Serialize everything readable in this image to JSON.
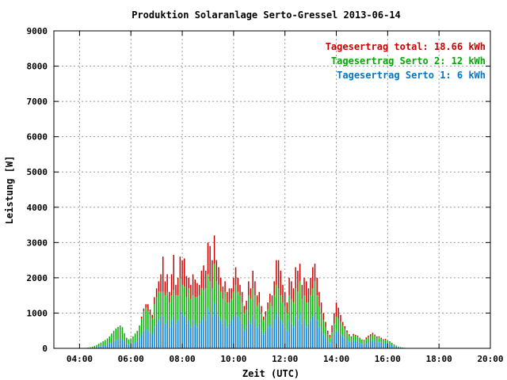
{
  "chart_data": {
    "type": "bar",
    "title": "Produktion Solaranlage Serto-Gressel 2013-06-14",
    "xlabel": "Zeit (UTC)",
    "ylabel": "Leistung [W]",
    "xlim": [
      3.0,
      20.0
    ],
    "ylim": [
      0,
      9000
    ],
    "x_ticks": [
      {
        "value": 4,
        "label": "04:00"
      },
      {
        "value": 6,
        "label": "06:00"
      },
      {
        "value": 8,
        "label": "08:00"
      },
      {
        "value": 10,
        "label": "10:00"
      },
      {
        "value": 12,
        "label": "12:00"
      },
      {
        "value": 14,
        "label": "14:00"
      },
      {
        "value": 16,
        "label": "16:00"
      },
      {
        "value": 18,
        "label": "18:00"
      },
      {
        "value": 20,
        "label": "20:00"
      }
    ],
    "y_ticks": [
      0,
      1000,
      2000,
      3000,
      4000,
      5000,
      6000,
      7000,
      8000,
      9000
    ],
    "grid": true,
    "legend_position": "top-right",
    "legend": [
      {
        "label": "Tagesertrag total: 18.66 kWh",
        "color": "#cc0000"
      },
      {
        "label": "Tagesertrag Serto 2: 12 kWh",
        "color": "#00aa00"
      },
      {
        "label": "Tagesertrag Serto 1: 6 kWh",
        "color": "#0077cc"
      }
    ],
    "stacked": true,
    "step_hours": 0.08333,
    "x_start": 4.0,
    "series": [
      {
        "name": "Tagesertrag Serto 1: 6 kWh",
        "color": "#0077cc",
        "values": [
          5,
          4,
          3,
          5,
          8,
          12,
          18,
          25,
          35,
          50,
          65,
          80,
          95,
          110,
          140,
          170,
          200,
          230,
          250,
          270,
          250,
          180,
          120,
          100,
          110,
          140,
          170,
          200,
          300,
          400,
          500,
          550,
          500,
          450,
          400,
          600,
          700,
          800,
          900,
          900,
          700,
          800,
          600,
          800,
          900,
          700,
          800,
          1100,
          1000,
          900,
          700,
          800,
          600,
          800,
          700,
          600,
          700,
          800,
          900,
          800,
          1100,
          1000,
          900,
          1300,
          1000,
          900,
          800,
          700,
          800,
          600,
          700,
          800,
          900,
          1000,
          900,
          800,
          700,
          500,
          600,
          800,
          700,
          900,
          800,
          600,
          700,
          500,
          400,
          500,
          600,
          700,
          600,
          800,
          1000,
          900,
          800,
          700,
          600,
          500,
          800,
          700,
          600,
          900,
          800,
          1000,
          700,
          800,
          600,
          700,
          800,
          900,
          1000,
          800,
          600,
          500,
          400,
          300,
          200,
          150,
          250,
          400,
          500,
          450,
          400,
          350,
          300,
          250,
          200,
          180,
          220,
          200,
          190,
          160,
          130,
          120,
          150,
          170,
          190,
          230,
          200,
          170,
          180,
          160,
          140,
          150,
          130,
          110,
          90,
          70,
          50,
          30,
          20,
          15,
          10,
          5
        ]
      },
      {
        "name": "Tagesertrag Serto 2: 12 kWh",
        "color": "#00aa00",
        "values": [
          5,
          4,
          3,
          8,
          12,
          20,
          30,
          45,
          60,
          80,
          100,
          120,
          140,
          170,
          200,
          250,
          300,
          330,
          360,
          380,
          350,
          250,
          180,
          150,
          170,
          200,
          250,
          300,
          350,
          450,
          550,
          600,
          550,
          500,
          450,
          650,
          750,
          800,
          700,
          700,
          800,
          800,
          700,
          700,
          750,
          800,
          700,
          900,
          800,
          850,
          750,
          900,
          800,
          700,
          750,
          850,
          800,
          900,
          750,
          900,
          1000,
          900,
          800,
          1100,
          900,
          900,
          800,
          700,
          800,
          700,
          600,
          600,
          700,
          800,
          700,
          700,
          600,
          500,
          500,
          700,
          700,
          800,
          700,
          600,
          600,
          500,
          400,
          400,
          500,
          600,
          600,
          700,
          800,
          800,
          700,
          600,
          600,
          500,
          700,
          700,
          700,
          800,
          800,
          900,
          700,
          700,
          700,
          600,
          700,
          800,
          900,
          700,
          600,
          500,
          400,
          300,
          200,
          150,
          200,
          300,
          400,
          400,
          350,
          300,
          250,
          200,
          150,
          120,
          150,
          150,
          140,
          120,
          100,
          90,
          120,
          140,
          150,
          160,
          150,
          130,
          130,
          110,
          100,
          100,
          90,
          80,
          60,
          40,
          30,
          20,
          15,
          10,
          5
        ]
      },
      {
        "name": "Tagesertrag total: 18.66 kWh",
        "color": "#cc0000",
        "values": [
          0,
          0,
          0,
          0,
          0,
          0,
          0,
          0,
          0,
          0,
          0,
          0,
          0,
          0,
          0,
          0,
          0,
          0,
          0,
          0,
          0,
          0,
          0,
          0,
          0,
          0,
          0,
          0,
          0,
          50,
          80,
          100,
          200,
          150,
          100,
          200,
          250,
          300,
          500,
          1000,
          400,
          500,
          300,
          600,
          1000,
          300,
          500,
          600,
          700,
          800,
          600,
          300,
          400,
          600,
          500,
          400,
          300,
          500,
          700,
          500,
          900,
          1000,
          800,
          800,
          600,
          500,
          400,
          350,
          300,
          300,
          400,
          300,
          400,
          500,
          400,
          300,
          300,
          200,
          250,
          400,
          300,
          500,
          400,
          300,
          300,
          200,
          100,
          150,
          200,
          250,
          300,
          400,
          700,
          800,
          700,
          500,
          400,
          300,
          500,
          500,
          400,
          600,
          600,
          500,
          400,
          500,
          600,
          400,
          500,
          600,
          500,
          500,
          400,
          300,
          200,
          150,
          100,
          80,
          200,
          300,
          400,
          300,
          200,
          100,
          80,
          60,
          50,
          40,
          40,
          30,
          30,
          20,
          20,
          30,
          40,
          50,
          60,
          50,
          40,
          40,
          30,
          30,
          20,
          20,
          10,
          10,
          5,
          5,
          0,
          0,
          0
        ]
      }
    ]
  }
}
